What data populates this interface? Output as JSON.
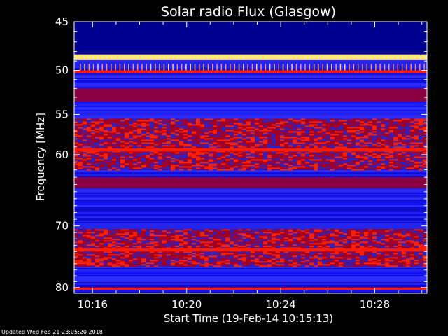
{
  "chart_data": {
    "type": "heatmap",
    "title": "Solar radio Flux (Glasgow)",
    "xlabel": "Start Time (19-Feb-14 10:15:13)",
    "ylabel": "Frequency [MHz]",
    "x_unit": "time (HH:MM)",
    "xlim": [
      "10:15:13",
      "10:30:13"
    ],
    "ylim": [
      45,
      81
    ],
    "y_scale": "log",
    "y_reversed": true,
    "x_ticks": [
      "10:16",
      "10:20",
      "10:24",
      "10:28"
    ],
    "y_ticks": [
      45,
      50,
      55,
      60,
      70,
      80
    ],
    "colormap": [
      "#000070",
      "#1010ff",
      "#4040ff",
      "#b00030",
      "#ff1a00",
      "#ffcc40",
      "#ffffe0"
    ],
    "bands": [
      {
        "f_lo": 45.0,
        "f_hi": 48.3,
        "level": "low"
      },
      {
        "f_lo": 48.3,
        "f_hi": 48.9,
        "level": "very-high"
      },
      {
        "f_lo": 49.3,
        "f_hi": 50.0,
        "level": "bursts"
      },
      {
        "f_lo": 50.0,
        "f_hi": 50.3,
        "level": "high"
      },
      {
        "f_lo": 52.0,
        "f_hi": 53.5,
        "level": "medium-low"
      },
      {
        "f_lo": 55.5,
        "f_hi": 62.0,
        "level": "medium"
      },
      {
        "f_lo": 59.2,
        "f_hi": 59.6,
        "level": "high"
      },
      {
        "f_lo": 63.0,
        "f_hi": 64.5,
        "level": "medium-low"
      },
      {
        "f_lo": 70.5,
        "f_hi": 76.5,
        "level": "medium"
      },
      {
        "f_lo": 73.5,
        "f_hi": 74.0,
        "level": "high"
      },
      {
        "f_lo": 80.0,
        "f_hi": 80.4,
        "level": "high"
      }
    ]
  },
  "footer": {
    "updated": "Updated Wed Feb 21 23:05:20 2018"
  }
}
